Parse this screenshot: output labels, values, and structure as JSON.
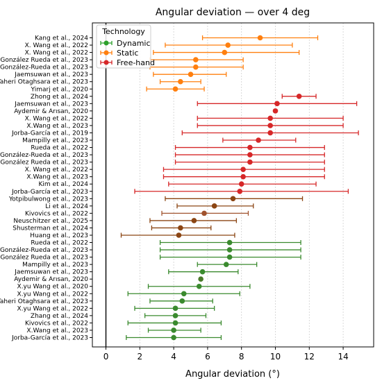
{
  "chart_data": {
    "type": "scatter",
    "title": "Angular deviation — over 4 deg",
    "xlabel": "Angular deviation (°)",
    "ylabel": "",
    "xlim": [
      -0.8,
      15.8
    ],
    "xticks": [
      0,
      2,
      4,
      6,
      8,
      10,
      12,
      14
    ],
    "grid": "x dotted",
    "legend": {
      "title": "Technology",
      "placement": "top-left",
      "entries": [
        {
          "name": "Dynamic",
          "color": "#2ca02c"
        },
        {
          "name": "Static",
          "color": "#ff7f0e"
        },
        {
          "name": "Free-hand",
          "color": "#d62728"
        }
      ]
    },
    "points": [
      {
        "label": "Kang et al., 2024",
        "mean": 9.1,
        "low": 5.7,
        "high": 12.5,
        "color": "#ff7f0e"
      },
      {
        "label": "X. Wang et al., 2022",
        "mean": 7.2,
        "low": 3.5,
        "high": 11.0,
        "color": "#ff7f0e"
      },
      {
        "label": "X. Wang et al., 2022",
        "mean": 7.0,
        "low": 2.8,
        "high": 11.4,
        "color": "#ff7f0e"
      },
      {
        "label": "González Rueda et al., 2023",
        "mean": 5.3,
        "low": 2.6,
        "high": 8.1,
        "color": "#ff7f0e"
      },
      {
        "label": "González-Rueda et al., 2023",
        "mean": 5.3,
        "low": 2.6,
        "high": 8.1,
        "color": "#ff7f0e"
      },
      {
        "label": "Jaemsuwan et al., 2023",
        "mean": 5.0,
        "low": 2.8,
        "high": 7.1,
        "color": "#ff7f0e"
      },
      {
        "label": "Taheri Otaghsara et al., 2023",
        "mean": 4.4,
        "low": 3.2,
        "high": 5.6,
        "color": "#ff7f0e"
      },
      {
        "label": "Yimarj et al., 2020",
        "mean": 4.1,
        "low": 2.4,
        "high": 5.8,
        "color": "#ff7f0e"
      },
      {
        "label": "Zhong et al., 2024",
        "mean": 11.4,
        "low": 10.4,
        "high": 12.4,
        "color": "#d62728"
      },
      {
        "label": "Jaemsuwan et al., 2023",
        "mean": 10.1,
        "low": 5.4,
        "high": 14.8,
        "color": "#d62728"
      },
      {
        "label": "Aydemir & Arısan, 2020",
        "mean": 10.0,
        "low": 10.0,
        "high": 10.0,
        "color": "#d62728"
      },
      {
        "label": "X. Wang et al., 2022",
        "mean": 9.7,
        "low": 5.4,
        "high": 14.0,
        "color": "#d62728"
      },
      {
        "label": "X.Wang et al., 2023",
        "mean": 9.7,
        "low": 5.4,
        "high": 14.0,
        "color": "#d62728"
      },
      {
        "label": "Jorba-García et al., 2019",
        "mean": 9.7,
        "low": 4.5,
        "high": 14.9,
        "color": "#d62728"
      },
      {
        "label": "Mampilly et al., 2023",
        "mean": 9.0,
        "low": 6.9,
        "high": 11.2,
        "color": "#d62728"
      },
      {
        "label": "Rueda et al., 2022",
        "mean": 8.5,
        "low": 4.1,
        "high": 12.9,
        "color": "#d62728"
      },
      {
        "label": "González-Rueda et al., 2023",
        "mean": 8.5,
        "low": 4.1,
        "high": 12.9,
        "color": "#d62728"
      },
      {
        "label": "González Rueda et al., 2023",
        "mean": 8.5,
        "low": 4.1,
        "high": 12.9,
        "color": "#d62728"
      },
      {
        "label": "X. Wang et al., 2022",
        "mean": 8.1,
        "low": 3.4,
        "high": 12.9,
        "color": "#d62728"
      },
      {
        "label": "X.Wang et al., 2023",
        "mean": 8.1,
        "low": 3.4,
        "high": 12.9,
        "color": "#d62728"
      },
      {
        "label": "Kim et al., 2024",
        "mean": 8.0,
        "low": 3.7,
        "high": 12.4,
        "color": "#d62728"
      },
      {
        "label": "Jorba-García et al., 2023",
        "mean": 7.9,
        "low": 1.7,
        "high": 14.3,
        "color": "#d62728"
      },
      {
        "label": "Yotpibulwong et al., 2023",
        "mean": 7.5,
        "low": 3.5,
        "high": 11.6,
        "color": "#8b4513"
      },
      {
        "label": "Li et al., 2024",
        "mean": 6.4,
        "low": 4.2,
        "high": 8.7,
        "color": "#8b4513"
      },
      {
        "label": "Kivovics et al., 2022",
        "mean": 5.8,
        "low": 3.3,
        "high": 8.4,
        "color": "#a0522d"
      },
      {
        "label": "Neuschitzer et al., 2025",
        "mean": 5.2,
        "low": 2.6,
        "high": 7.7,
        "color": "#8b4513"
      },
      {
        "label": "Shusterman et al., 2024",
        "mean": 4.4,
        "low": 2.7,
        "high": 6.2,
        "color": "#8b4513"
      },
      {
        "label": "Huang et al., 2023",
        "mean": 4.3,
        "low": 0.9,
        "high": 7.6,
        "color": "#8b4513"
      },
      {
        "label": "Rueda et al., 2022",
        "mean": 7.3,
        "low": 3.2,
        "high": 11.5,
        "color": "#3a8a2e"
      },
      {
        "label": "González-Rueda et al., 2023",
        "mean": 7.3,
        "low": 3.2,
        "high": 11.5,
        "color": "#3a8a2e"
      },
      {
        "label": "González Rueda et al., 2023",
        "mean": 7.3,
        "low": 3.2,
        "high": 11.5,
        "color": "#3a8a2e"
      },
      {
        "label": "Mampilly et al., 2023",
        "mean": 7.1,
        "low": 5.4,
        "high": 8.9,
        "color": "#3a8a2e"
      },
      {
        "label": "Jaemsuwan et al., 2023",
        "mean": 5.7,
        "low": 3.7,
        "high": 7.8,
        "color": "#3a8a2e"
      },
      {
        "label": "Aydemir & Arısan, 2020",
        "mean": 5.6,
        "low": 5.6,
        "high": 5.6,
        "color": "#4a7a2a"
      },
      {
        "label": "X.yu Wang et al., 2020",
        "mean": 5.5,
        "low": 2.5,
        "high": 8.5,
        "color": "#3a8a2e"
      },
      {
        "label": "X.yu Wang et al., 2022",
        "mean": 4.6,
        "low": 1.3,
        "high": 7.9,
        "color": "#3a8a2e"
      },
      {
        "label": "Taheri Otaghsara et al., 2023",
        "mean": 4.5,
        "low": 2.6,
        "high": 6.3,
        "color": "#3a8a2e"
      },
      {
        "label": "X.yu Wang et al., 2022",
        "mean": 4.1,
        "low": 1.7,
        "high": 6.4,
        "color": "#3a8a2e"
      },
      {
        "label": "Zhang et al., 2024",
        "mean": 4.1,
        "low": 2.3,
        "high": 5.9,
        "color": "#3a8a2e"
      },
      {
        "label": "Kivovics et al., 2022",
        "mean": 4.1,
        "low": 1.3,
        "high": 6.8,
        "color": "#3a8a2e"
      },
      {
        "label": "X.Wang et al., 2023",
        "mean": 4.0,
        "low": 2.5,
        "high": 5.6,
        "color": "#3a8a2e"
      },
      {
        "label": "Jorba-García et al., 2023",
        "mean": 4.0,
        "low": 1.2,
        "high": 6.8,
        "color": "#3a8a2e"
      }
    ]
  }
}
